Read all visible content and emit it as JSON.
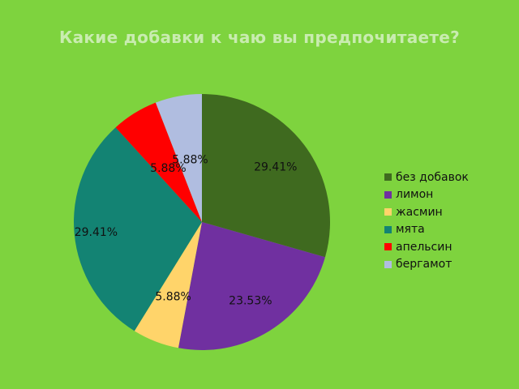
{
  "chart_data": {
    "type": "pie",
    "title": "Какие добавки к чаю вы предпочитаете?",
    "slices": [
      {
        "label": "без добавок",
        "value": 29.41,
        "display": "29.41%",
        "color": "#3f6a1f"
      },
      {
        "label": "лимон",
        "value": 23.53,
        "display": "23.53%",
        "color": "#7030a0"
      },
      {
        "label": "жасмин",
        "value": 5.88,
        "display": "5.88%",
        "color": "#ffd46a"
      },
      {
        "label": "мята",
        "value": 29.41,
        "display": "29.41%",
        "color": "#138373"
      },
      {
        "label": "апельсин",
        "value": 5.88,
        "display": "5.88%",
        "color": "#ff0000"
      },
      {
        "label": "бергамот",
        "value": 5.88,
        "display": "5.88%",
        "color": "#b0bde0"
      }
    ],
    "legend_position": "right"
  }
}
